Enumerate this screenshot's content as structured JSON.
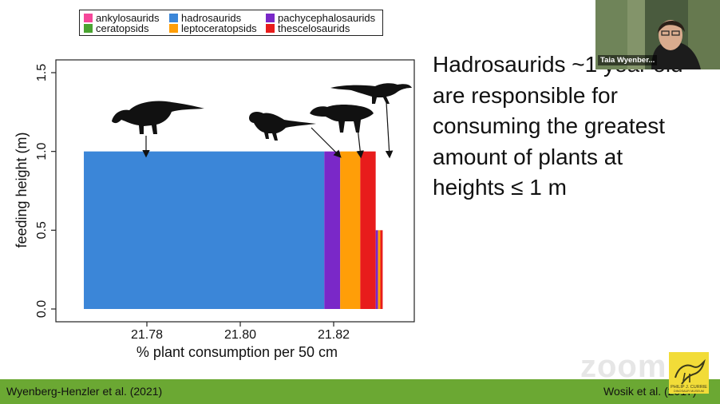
{
  "slide": {
    "heading_lines": [
      "Hadrosaurids ~1 year old",
      "are responsible for",
      "consuming the greatest",
      "amount of plants at",
      "heights ≤ 1 m"
    ],
    "citation_left": "Wyenberg-Henzler et al. (2021)",
    "citation_right": "Wosik et al. (2017)",
    "footer_color": "#6ba833"
  },
  "legend": {
    "items": [
      {
        "label": "ankylosaurids",
        "color": "#f5479a"
      },
      {
        "label": "hadrosaurids",
        "color": "#3b86d8"
      },
      {
        "label": "pachycephalosaurids",
        "color": "#7a28c8"
      },
      {
        "label": "ceratopsids",
        "color": "#4aa431"
      },
      {
        "label": "leptoceratopsids",
        "color": "#ff9e08"
      },
      {
        "label": "thescelosaurids",
        "color": "#e81c1c"
      }
    ]
  },
  "chart_data": {
    "type": "bar",
    "title": "",
    "xlabel": "% plant consumption per 50 cm",
    "ylabel": "feeding height (m)",
    "xlim": [
      21.765,
      21.831
    ],
    "ylim": [
      -0.05,
      1.6
    ],
    "xticks": [
      21.78,
      21.8,
      21.82
    ],
    "xtick_labels": [
      "21.78",
      "21.80",
      "21.82"
    ],
    "yticks": [
      0.0,
      0.5,
      1.0,
      1.5
    ],
    "ytick_labels": [
      "0.0",
      "0.5",
      "1.0",
      "1.5"
    ],
    "grid": false,
    "legend_position": "top",
    "bars": [
      {
        "group": "hadrosaurids",
        "x0": 21.7665,
        "x1": 21.818,
        "y0": 0.0,
        "y1": 1.0,
        "color": "#3b86d8"
      },
      {
        "group": "pachycephalosaurids",
        "x0": 21.818,
        "x1": 21.8214,
        "y0": 0.0,
        "y1": 1.0,
        "color": "#7a28c8"
      },
      {
        "group": "leptoceratopsids",
        "x0": 21.8214,
        "x1": 21.8257,
        "y0": 0.0,
        "y1": 1.0,
        "color": "#ff9e08"
      },
      {
        "group": "thescelosaurids",
        "x0": 21.8257,
        "x1": 21.829,
        "y0": 0.0,
        "y1": 1.0,
        "color": "#e81c1c"
      },
      {
        "group": "pachycephalosaurids",
        "x0": 21.829,
        "x1": 21.8295,
        "y0": 0.0,
        "y1": 0.5,
        "color": "#7a28c8"
      },
      {
        "group": "leptoceratopsids",
        "x0": 21.8295,
        "x1": 21.83,
        "y0": 0.0,
        "y1": 0.5,
        "color": "#ff9e08"
      },
      {
        "group": "thescelosaurids",
        "x0": 21.83,
        "x1": 21.8305,
        "y0": 0.0,
        "y1": 0.5,
        "color": "#e81c1c"
      }
    ],
    "silhouette_icons": [
      "hadrosaur-silhouette-icon",
      "pachycephalosaur-silhouette-icon",
      "leptoceratopsid-silhouette-icon",
      "thescelosaurid-silhouette-icon"
    ]
  },
  "video": {
    "participant_name": "Taia Wyenber...",
    "watermark": "zoom"
  }
}
